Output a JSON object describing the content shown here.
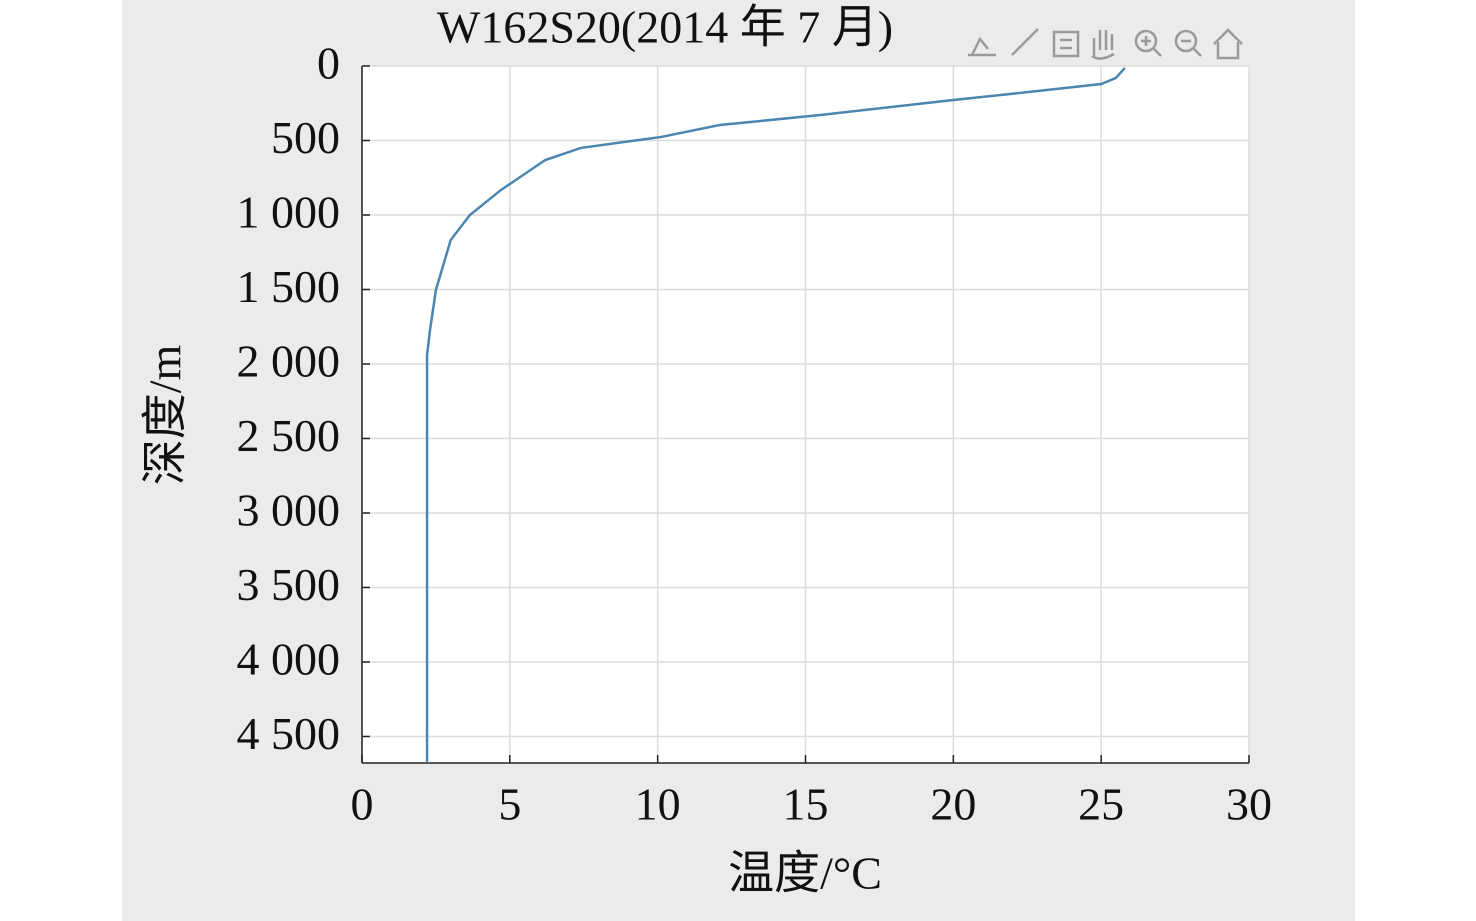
{
  "chart_data": {
    "type": "line",
    "title": "W162S20(2014 年 7 月)",
    "x_label": "温度/°C",
    "y_label": "深度/m",
    "x": [
      25.8,
      25.5,
      25.0,
      21.6,
      20.0,
      15.5,
      12.1,
      10.1,
      7.4,
      6.2,
      5.7,
      4.7,
      3.65,
      3.0,
      2.5,
      2.3,
      2.2,
      2.2
    ],
    "values": [
      13,
      80,
      121,
      195,
      228,
      329,
      396,
      477,
      550,
      631,
      698,
      832,
      1000,
      1168,
      1503,
      1772,
      1940,
      4670
    ],
    "color": "#4a86b0",
    "xlim": [
      0,
      30
    ],
    "xticks": [
      0,
      5,
      10,
      15,
      20,
      25,
      30
    ],
    "ylim": [
      0,
      4678
    ],
    "y_reversed": true,
    "yticks": [
      0,
      500,
      {
        "value": 1000,
        "label": "1 000"
      },
      {
        "value": 1500,
        "label": "1 500"
      },
      {
        "value": 2000,
        "label": "2 000"
      },
      {
        "value": 2500,
        "label": "2 500"
      },
      {
        "value": 3000,
        "label": "3 000"
      },
      {
        "value": 3500,
        "label": "3 500"
      },
      {
        "value": 4000,
        "label": "4 000"
      },
      {
        "value": 4500,
        "label": "4 500"
      }
    ],
    "grid": true
  }
}
